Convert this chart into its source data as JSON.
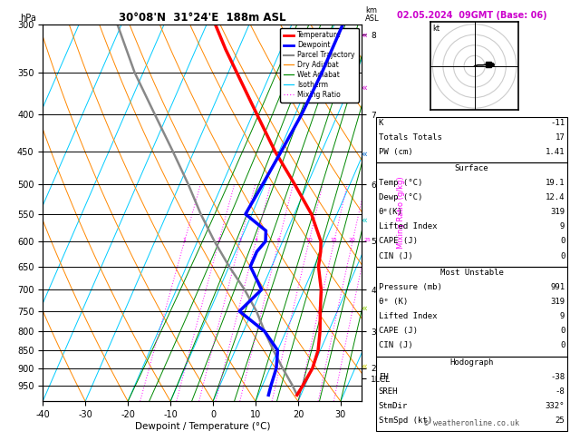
{
  "title_left": "30°08'N  31°24'E  188m ASL",
  "title_right": "02.05.2024  09GMT (Base: 06)",
  "xlabel": "Dewpoint / Temperature (°C)",
  "footer": "© weatheronline.co.uk",
  "xlim": [
    -40,
    35
  ],
  "pressure_levels": [
    300,
    350,
    400,
    450,
    500,
    550,
    600,
    650,
    700,
    750,
    800,
    850,
    900,
    950
  ],
  "temp_profile_p": [
    300,
    325,
    350,
    400,
    450,
    500,
    550,
    600,
    620,
    650,
    700,
    750,
    800,
    850,
    900,
    950,
    980
  ],
  "temp_profile_t": [
    -38,
    -33,
    -28,
    -19,
    -11,
    -3,
    4,
    9,
    10,
    11,
    14,
    16,
    18,
    19.5,
    20,
    19.5,
    19.1
  ],
  "dewp_profile_p": [
    300,
    350,
    400,
    450,
    500,
    550,
    580,
    600,
    620,
    650,
    700,
    750,
    800,
    850,
    900,
    950,
    980
  ],
  "dewp_profile_t": [
    -8,
    -8,
    -8.5,
    -9.5,
    -10.5,
    -11.5,
    -5,
    -4,
    -5,
    -5,
    0,
    -3,
    5,
    10,
    11.5,
    12,
    12.4
  ],
  "parcel_p": [
    980,
    950,
    900,
    850,
    800,
    750,
    700,
    650,
    600,
    550,
    500,
    450,
    400,
    350,
    300
  ],
  "parcel_t": [
    19.1,
    17,
    13,
    9,
    5,
    1,
    -4,
    -10,
    -16,
    -22,
    -28,
    -35,
    -43,
    -52,
    -61
  ],
  "temp_color": "#ff0000",
  "dewp_color": "#0000ff",
  "parcel_color": "#888888",
  "isotherm_color": "#00ccff",
  "dry_adiabat_color": "#ff8800",
  "wet_adiabat_color": "#008800",
  "mix_ratio_color": "#ff00ff",
  "temp_lw": 2.5,
  "dewp_lw": 2.5,
  "parcel_lw": 1.8,
  "bg_color": "#ffffff",
  "km_labels": [
    "8",
    "7",
    "6",
    "5",
    "4",
    "3",
    "2",
    "1LCL"
  ],
  "km_pressures": [
    310,
    400,
    500,
    600,
    700,
    800,
    900,
    930
  ],
  "mix_values": [
    1,
    2,
    3,
    4,
    6,
    10,
    15,
    20,
    25
  ],
  "legend_entries": [
    {
      "label": "Temperature",
      "color": "#ff0000",
      "lw": 2.0,
      "ls": "solid"
    },
    {
      "label": "Dewpoint",
      "color": "#0000ff",
      "lw": 2.0,
      "ls": "solid"
    },
    {
      "label": "Parcel Trajectory",
      "color": "#888888",
      "lw": 1.5,
      "ls": "solid"
    },
    {
      "label": "Dry Adiabat",
      "color": "#ff8800",
      "lw": 0.9,
      "ls": "solid"
    },
    {
      "label": "Wet Adiabat",
      "color": "#008800",
      "lw": 0.9,
      "ls": "solid"
    },
    {
      "label": "Isotherm",
      "color": "#00ccff",
      "lw": 0.9,
      "ls": "solid"
    },
    {
      "label": "Mixing Ratio",
      "color": "#ff00ff",
      "lw": 0.8,
      "ls": "dotted"
    }
  ],
  "info_K": "-11",
  "info_TT": "17",
  "info_PW": "1.41",
  "surf_temp": "19.1",
  "surf_dewp": "12.4",
  "surf_theta": "319",
  "surf_li": "9",
  "surf_cape": "0",
  "surf_cin": "0",
  "mu_press": "991",
  "mu_theta": "319",
  "mu_li": "9",
  "mu_cape": "0",
  "mu_cin": "0",
  "hodo_eh": "-38",
  "hodo_sreh": "-8",
  "hodo_stmdir": "332°",
  "hodo_stmspd": "25"
}
